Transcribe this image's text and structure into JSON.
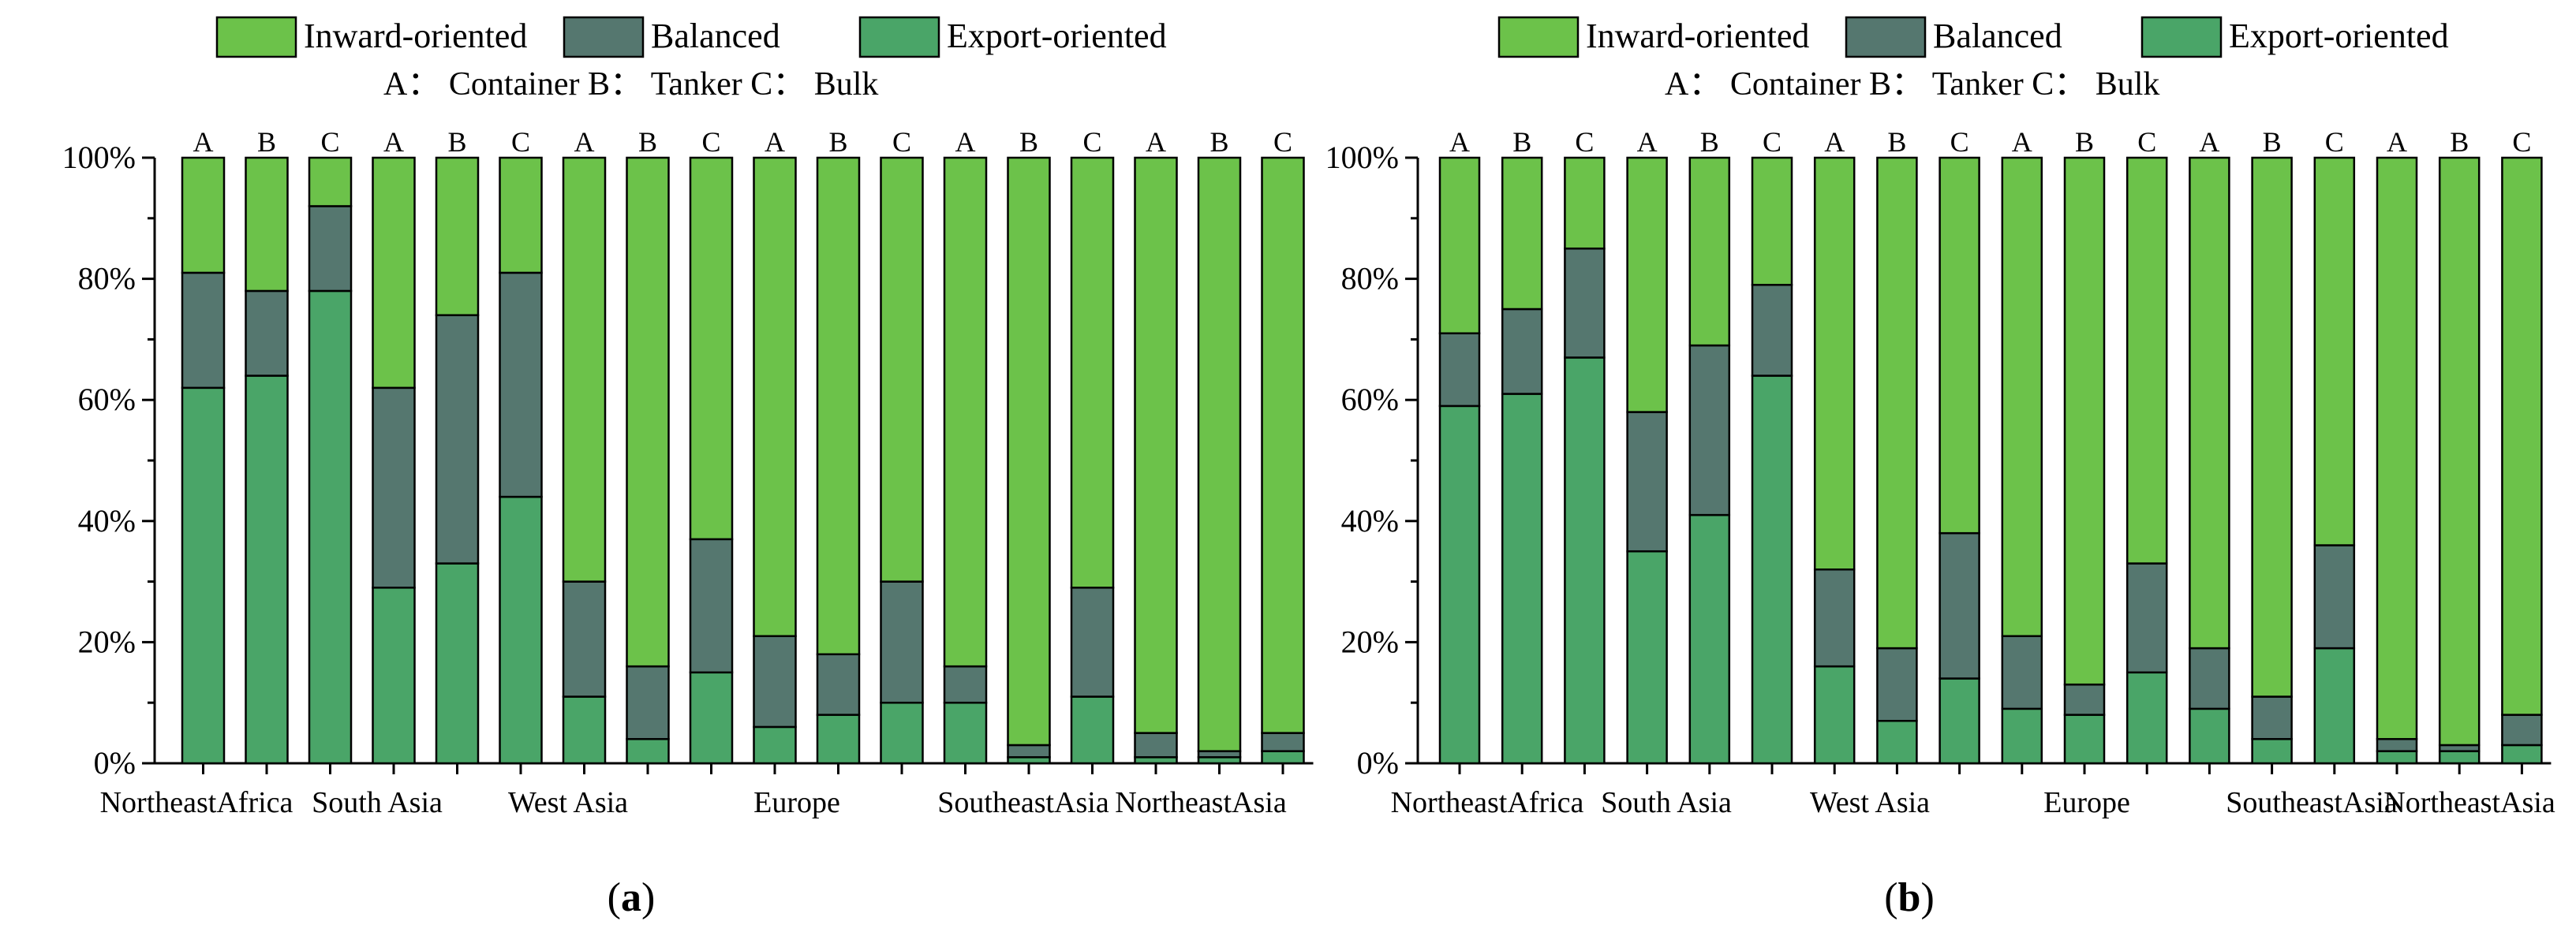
{
  "colors": {
    "inward": "#6cc24a",
    "balanced": "#55776f",
    "export": "#4aa568"
  },
  "legend": [
    "Inward-oriented",
    "Balanced",
    "Export-oriented"
  ],
  "note": "A： Container B： Tanker C： Bulk",
  "bar_letters": [
    "A",
    "B",
    "C",
    "A",
    "B",
    "C",
    "A",
    "B",
    "C",
    "A",
    "B",
    "C",
    "A",
    "B",
    "C",
    "A",
    "B",
    "C"
  ],
  "region_labels": [
    "NortheastAfrica",
    "South Asia",
    "West Asia",
    "Europe",
    "SoutheastAsia",
    "NortheastAsia"
  ],
  "y_tick_labels": [
    "0%",
    "20%",
    "40%",
    "60%",
    "80%",
    "100%"
  ],
  "chart_data": [
    {
      "type": "bar",
      "stacked": true,
      "title": "(a)",
      "panel_letter": "a",
      "categories": [
        "A",
        "B",
        "C",
        "A",
        "B",
        "C",
        "A",
        "B",
        "C",
        "A",
        "B",
        "C",
        "A",
        "B",
        "C",
        "A",
        "B",
        "C"
      ],
      "groups": [
        "NortheastAfrica",
        "South Asia",
        "West Asia",
        "Europe",
        "SoutheastAsia",
        "NortheastAsia"
      ],
      "ylim": [
        0,
        100
      ],
      "series": [
        {
          "name": "Export-oriented",
          "values": [
            62,
            64,
            78,
            29,
            33,
            44,
            11,
            4,
            15,
            6,
            8,
            10,
            10,
            1,
            11,
            1,
            1,
            2
          ]
        },
        {
          "name": "Balanced",
          "values": [
            19,
            14,
            14,
            33,
            41,
            37,
            19,
            12,
            22,
            15,
            10,
            20,
            6,
            2,
            18,
            4,
            1,
            3
          ]
        },
        {
          "name": "Inward-oriented",
          "values": [
            19,
            22,
            8,
            38,
            26,
            19,
            70,
            84,
            63,
            79,
            82,
            70,
            84,
            97,
            71,
            95,
            98,
            95
          ]
        }
      ]
    },
    {
      "type": "bar",
      "stacked": true,
      "title": "(b)",
      "panel_letter": "b",
      "categories": [
        "A",
        "B",
        "C",
        "A",
        "B",
        "C",
        "A",
        "B",
        "C",
        "A",
        "B",
        "C",
        "A",
        "B",
        "C",
        "A",
        "B",
        "C"
      ],
      "groups": [
        "NortheastAfrica",
        "South Asia",
        "West Asia",
        "Europe",
        "SoutheastAsia",
        "NortheastAsia"
      ],
      "ylim": [
        0,
        100
      ],
      "series": [
        {
          "name": "Export-oriented",
          "values": [
            59,
            61,
            67,
            35,
            41,
            64,
            16,
            7,
            14,
            9,
            8,
            15,
            9,
            4,
            19,
            2,
            2,
            3
          ]
        },
        {
          "name": "Balanced",
          "values": [
            12,
            14,
            18,
            23,
            28,
            15,
            16,
            12,
            24,
            12,
            5,
            18,
            10,
            7,
            17,
            2,
            1,
            5
          ]
        },
        {
          "name": "Inward-oriented",
          "values": [
            29,
            25,
            15,
            42,
            31,
            21,
            68,
            81,
            62,
            79,
            87,
            67,
            81,
            89,
            64,
            96,
            97,
            92
          ]
        }
      ]
    }
  ]
}
